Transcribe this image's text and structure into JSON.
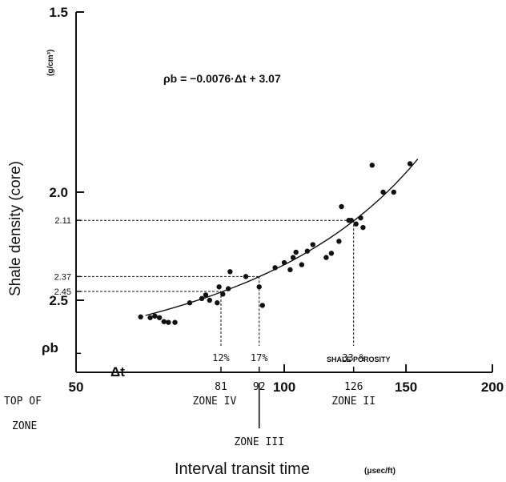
{
  "chart_data": {
    "type": "scatter",
    "title": "",
    "xlabel": "Interval transit time",
    "xunit": "(μsec/ft)",
    "ylabel": "Shale density (core)",
    "yunit": "(g/cm³)",
    "x_scale": "log",
    "y_scale": "reciprocal",
    "xlim": [
      50,
      200
    ],
    "ylim": [
      1.5,
      3.0
    ],
    "x_ticks_major": [
      50,
      100,
      150,
      200
    ],
    "x_ticks_minor": [
      81,
      92,
      126
    ],
    "y_ticks_major": [
      1.5,
      2.0,
      2.5
    ],
    "y_ticks_minor": [
      2.11,
      2.37,
      2.45
    ],
    "x_tick_prefix": "Δt",
    "y_bottom_symbol": "ρb",
    "equation": "ρb = −0.0076·Δt + 3.07",
    "fit_line": {
      "slope": -0.0076,
      "intercept": 3.07,
      "x_range": [
        63,
        156
      ]
    },
    "points": [
      {
        "x": 62,
        "y": 2.6
      },
      {
        "x": 64,
        "y": 2.605
      },
      {
        "x": 65,
        "y": 2.595
      },
      {
        "x": 66,
        "y": 2.605
      },
      {
        "x": 67,
        "y": 2.63
      },
      {
        "x": 68,
        "y": 2.635
      },
      {
        "x": 69.5,
        "y": 2.635
      },
      {
        "x": 73,
        "y": 2.515
      },
      {
        "x": 76,
        "y": 2.49
      },
      {
        "x": 77,
        "y": 2.47
      },
      {
        "x": 78,
        "y": 2.5
      },
      {
        "x": 80,
        "y": 2.515
      },
      {
        "x": 80.5,
        "y": 2.425
      },
      {
        "x": 81.5,
        "y": 2.465
      },
      {
        "x": 83,
        "y": 2.435
      },
      {
        "x": 83.5,
        "y": 2.345
      },
      {
        "x": 88,
        "y": 2.37
      },
      {
        "x": 92,
        "y": 2.425
      },
      {
        "x": 93,
        "y": 2.53
      },
      {
        "x": 97,
        "y": 2.325
      },
      {
        "x": 100,
        "y": 2.3
      },
      {
        "x": 102,
        "y": 2.335
      },
      {
        "x": 103,
        "y": 2.275
      },
      {
        "x": 104,
        "y": 2.25
      },
      {
        "x": 106,
        "y": 2.31
      },
      {
        "x": 108,
        "y": 2.245
      },
      {
        "x": 110,
        "y": 2.215
      },
      {
        "x": 115,
        "y": 2.275
      },
      {
        "x": 117,
        "y": 2.255
      },
      {
        "x": 120,
        "y": 2.2
      },
      {
        "x": 121,
        "y": 2.055
      },
      {
        "x": 124,
        "y": 2.11
      },
      {
        "x": 125,
        "y": 2.11
      },
      {
        "x": 127,
        "y": 2.125
      },
      {
        "x": 129,
        "y": 2.1
      },
      {
        "x": 130,
        "y": 2.14
      },
      {
        "x": 134,
        "y": 1.905
      },
      {
        "x": 139,
        "y": 2.0
      },
      {
        "x": 144,
        "y": 2.0
      },
      {
        "x": 152,
        "y": 1.9
      }
    ],
    "guides": [
      {
        "x": 81,
        "y": 2.45
      },
      {
        "x": 92,
        "y": 2.37
      },
      {
        "x": 126,
        "y": 2.11
      }
    ],
    "porosity_labels": [
      {
        "x": 81,
        "text": "12%"
      },
      {
        "x": 92,
        "text": "17%"
      },
      {
        "x": 126,
        "text": "33 %"
      }
    ],
    "porosity_caption": "SHALE POROSITY"
  },
  "zones": {
    "heading_line1": "TOP OF",
    "heading_line2": "ZONE",
    "items": [
      {
        "label": "ZONE IV",
        "x": 81
      },
      {
        "label": "ZONE III",
        "x": 92
      },
      {
        "label": "ZONE II",
        "x": 126
      }
    ]
  }
}
